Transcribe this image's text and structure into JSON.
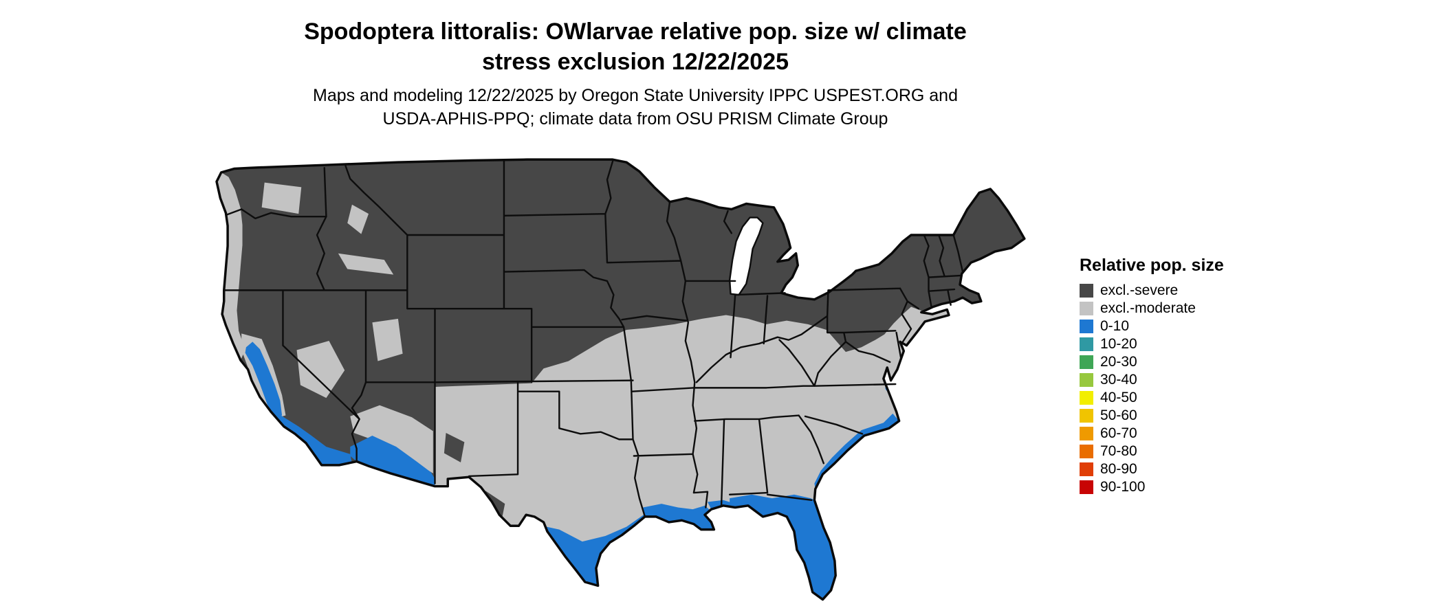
{
  "title": {
    "line1": "Spodoptera littoralis: OWlarvae relative pop. size w/ climate",
    "line2": "stress exclusion 12/22/2025"
  },
  "subtitle": {
    "line1": "Maps and modeling 12/22/2025 by Oregon State University IPPC USPEST.ORG and",
    "line2": "USDA-APHIS-PPQ; climate data from OSU PRISM Climate Group"
  },
  "legend": {
    "title": "Relative pop. size",
    "items": [
      {
        "label": "excl.-severe",
        "color": "#474747"
      },
      {
        "label": "excl.-moderate",
        "color": "#c3c3c3"
      },
      {
        "label": "0-10",
        "color": "#1e78d2"
      },
      {
        "label": "10-20",
        "color": "#2f99a3"
      },
      {
        "label": "20-30",
        "color": "#3fa656"
      },
      {
        "label": "30-40",
        "color": "#97c83e"
      },
      {
        "label": "40-50",
        "color": "#f2ee00"
      },
      {
        "label": "50-60",
        "color": "#f0c400"
      },
      {
        "label": "60-70",
        "color": "#ef9a00"
      },
      {
        "label": "70-80",
        "color": "#e96d00"
      },
      {
        "label": "80-90",
        "color": "#e03e06"
      },
      {
        "label": "90-100",
        "color": "#c80404"
      }
    ]
  },
  "map": {
    "description": "Continental United States shaded by relative population size class",
    "zones_visible": [
      "excl.-severe",
      "excl.-moderate",
      "0-10"
    ]
  }
}
